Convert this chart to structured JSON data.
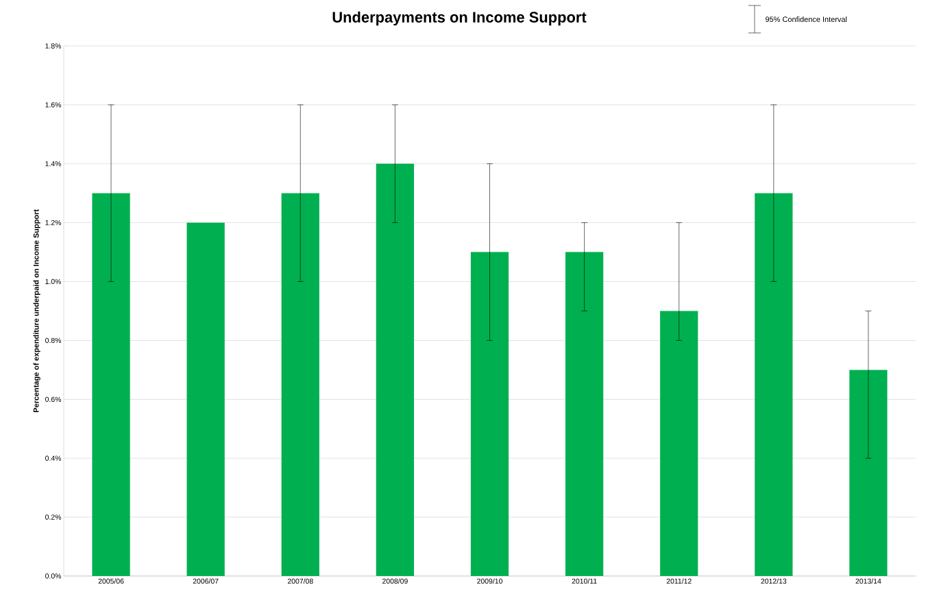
{
  "chart_data": {
    "type": "bar",
    "title": "Underpayments on Income Support",
    "ylabel": "Percentage of expenditure underpaid on Income Support",
    "categories": [
      "2005/06",
      "2006/07",
      "2007/08",
      "2008/09",
      "2009/10",
      "2010/11",
      "2011/12",
      "2012/13",
      "2013/14"
    ],
    "values": [
      1.3,
      1.2,
      1.3,
      1.4,
      1.1,
      1.1,
      0.9,
      1.3,
      0.7
    ],
    "errors": [
      [
        1.0,
        1.6
      ],
      null,
      [
        1.0,
        1.6
      ],
      [
        1.2,
        1.6
      ],
      [
        0.8,
        1.4
      ],
      [
        0.9,
        1.2
      ],
      [
        0.8,
        1.2
      ],
      [
        1.0,
        1.6
      ],
      [
        0.4,
        0.9
      ]
    ],
    "color": "#00b050",
    "ylim": [
      0,
      1.8
    ],
    "yticks": [
      {
        "value": 0,
        "label": "0.0%"
      },
      {
        "value": 0.2,
        "label": "0.2%"
      },
      {
        "value": 0.4,
        "label": "0.4%"
      },
      {
        "value": 0.6,
        "label": "0.6%"
      },
      {
        "value": 0.8,
        "label": "0.8%"
      },
      {
        "value": 1.0,
        "label": "1.0%"
      },
      {
        "value": 1.2,
        "label": "1.2%"
      },
      {
        "value": 1.4,
        "label": "1.4%"
      },
      {
        "value": 1.6,
        "label": "1.6%"
      },
      {
        "value": 1.8,
        "label": "1.8%"
      }
    ],
    "grid": "y",
    "annotations": [
      "95% Confidence Interval"
    ]
  }
}
